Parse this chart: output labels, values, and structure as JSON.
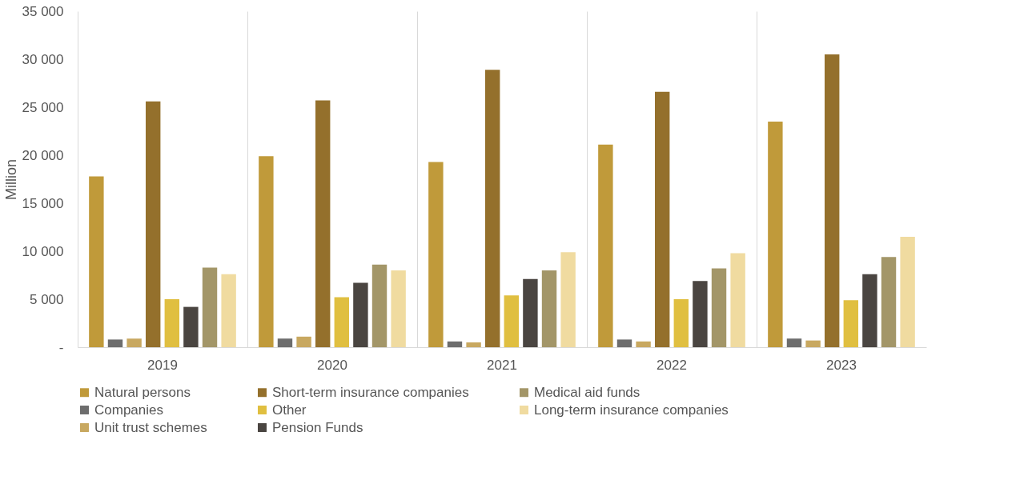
{
  "chart_data": {
    "type": "bar",
    "ylabel": "Million",
    "categories": [
      "2019",
      "2020",
      "2021",
      "2022",
      "2023"
    ],
    "ylim": [
      0,
      35000
    ],
    "yticks": [
      {
        "value": 0,
        "label": "-"
      },
      {
        "value": 5000,
        "label": "5 000"
      },
      {
        "value": 10000,
        "label": "10 000"
      },
      {
        "value": 15000,
        "label": "15 000"
      },
      {
        "value": 20000,
        "label": "20 000"
      },
      {
        "value": 25000,
        "label": "25 000"
      },
      {
        "value": 30000,
        "label": "30 000"
      },
      {
        "value": 35000,
        "label": "35 000"
      }
    ],
    "grid": "x",
    "legend": "bottom",
    "series": [
      {
        "name": "Natural persons",
        "color": "#c09a3a",
        "values": [
          17800,
          19900,
          19300,
          21100,
          23500
        ]
      },
      {
        "name": "Companies",
        "color": "#6d6d6d",
        "values": [
          800,
          900,
          600,
          800,
          900
        ]
      },
      {
        "name": "Unit trust schemes",
        "color": "#c8a860",
        "values": [
          900,
          1100,
          500,
          600,
          700
        ]
      },
      {
        "name": "Short-term insurance companies",
        "color": "#94702c",
        "values": [
          25600,
          25700,
          28900,
          26600,
          30500
        ]
      },
      {
        "name": "Other",
        "color": "#e0bf40",
        "values": [
          5000,
          5200,
          5400,
          5000,
          4900
        ]
      },
      {
        "name": "Pension Funds",
        "color": "#4a4541",
        "values": [
          4200,
          6700,
          7100,
          6900,
          7600
        ]
      },
      {
        "name": "Medical aid funds",
        "color": "#a39668",
        "values": [
          8300,
          8600,
          8000,
          8200,
          9400
        ]
      },
      {
        "name": "Long-term insurance companies",
        "color": "#f0dba0",
        "values": [
          7600,
          8000,
          9900,
          9800,
          11500
        ]
      }
    ]
  }
}
